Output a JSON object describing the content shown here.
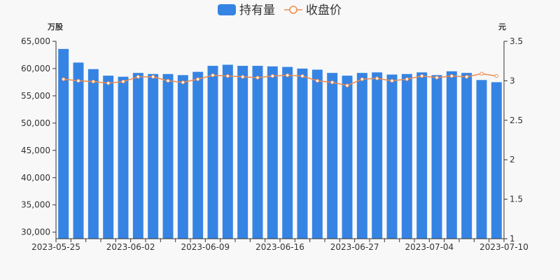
{
  "legend": {
    "bar_label": "持有量",
    "line_label": "收盘价"
  },
  "axes": {
    "left_unit": "万股",
    "right_unit": "元"
  },
  "colors": {
    "bar": "#3584e4",
    "line": "#f08a4b",
    "background": "#f8f8f8",
    "axis": "#333333"
  },
  "chart_data": {
    "type": "bar",
    "x_tick_labels": [
      "2023-05-25",
      "2023-06-02",
      "2023-06-09",
      "2023-06-16",
      "2023-06-27",
      "2023-07-04",
      "2023-07-10"
    ],
    "y_left": {
      "ticks": [
        30000,
        35000,
        40000,
        45000,
        50000,
        55000,
        60000,
        65000
      ],
      "min": 28800,
      "max": 65000
    },
    "y_right": {
      "ticks": [
        1,
        1.5,
        2,
        2.5,
        3,
        3.5
      ],
      "min": 1,
      "max": 3.5
    },
    "series": [
      {
        "name": "持有量",
        "type": "bar",
        "axis": "left",
        "values": [
          63600,
          61100,
          59900,
          58700,
          58500,
          59200,
          59000,
          59000,
          58800,
          59400,
          60500,
          60700,
          60500,
          60500,
          60400,
          60300,
          60000,
          59800,
          59200,
          58700,
          59200,
          59300,
          58900,
          59000,
          59300,
          58800,
          59500,
          59200,
          57900,
          57500
        ]
      },
      {
        "name": "收盘价",
        "type": "line",
        "axis": "right",
        "values": [
          3.02,
          3.0,
          2.99,
          2.97,
          2.99,
          3.05,
          3.05,
          3.0,
          2.98,
          3.02,
          3.07,
          3.06,
          3.05,
          3.04,
          3.06,
          3.07,
          3.06,
          3.0,
          2.98,
          2.94,
          3.02,
          3.03,
          3.0,
          3.02,
          3.06,
          3.04,
          3.06,
          3.05,
          3.09,
          3.06
        ]
      }
    ]
  }
}
